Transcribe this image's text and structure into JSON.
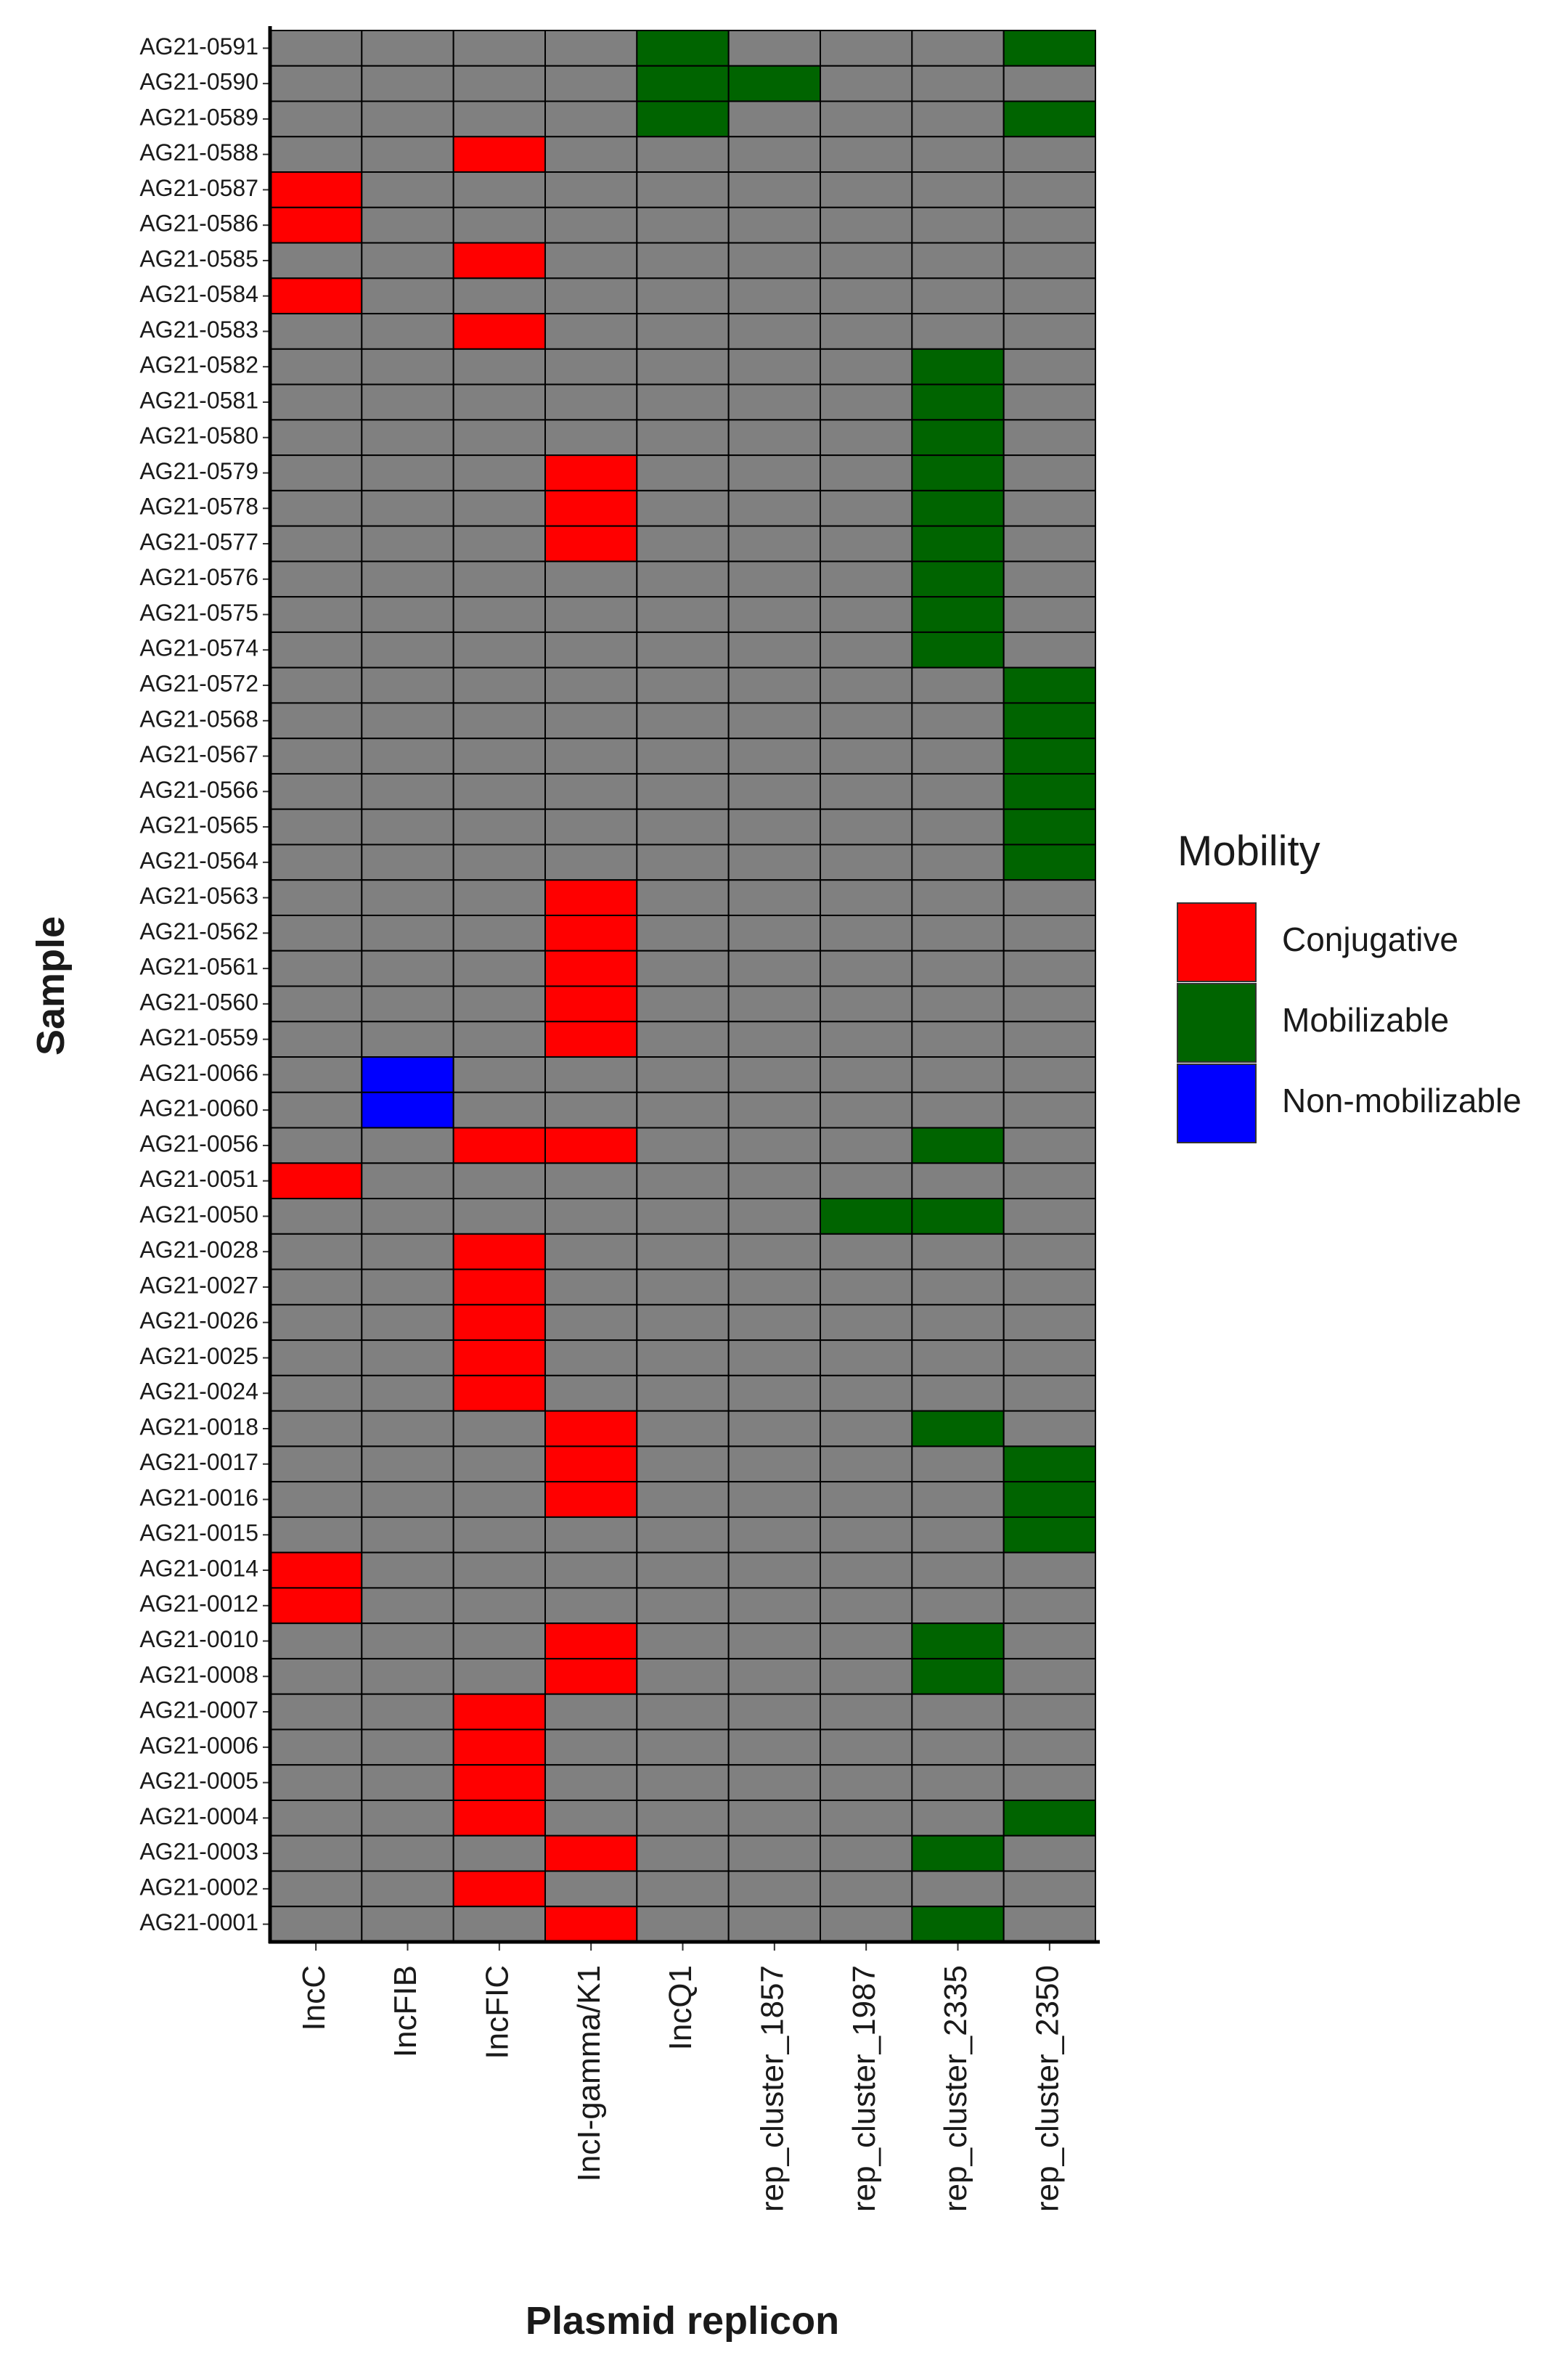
{
  "chart_data": {
    "type": "heatmap",
    "x_label": "Plasmid replicon",
    "y_label": "Sample",
    "legend_title": "Mobility",
    "legend_position": "right",
    "empty_color": "#808080",
    "legend": [
      {
        "name": "Conjugative",
        "color": "#ff0000"
      },
      {
        "name": "Mobilizable",
        "color": "#006400"
      },
      {
        "name": "Non-mobilizable",
        "color": "#0000ff"
      }
    ],
    "x": [
      "IncC",
      "IncFIB",
      "IncFIC",
      "IncI-gamma/K1",
      "IncQ1",
      "rep_cluster_1857",
      "rep_cluster_1987",
      "rep_cluster_2335",
      "rep_cluster_2350"
    ],
    "y": [
      "AG21-0591",
      "AG21-0590",
      "AG21-0589",
      "AG21-0588",
      "AG21-0587",
      "AG21-0586",
      "AG21-0585",
      "AG21-0584",
      "AG21-0583",
      "AG21-0582",
      "AG21-0581",
      "AG21-0580",
      "AG21-0579",
      "AG21-0578",
      "AG21-0577",
      "AG21-0576",
      "AG21-0575",
      "AG21-0574",
      "AG21-0572",
      "AG21-0568",
      "AG21-0567",
      "AG21-0566",
      "AG21-0565",
      "AG21-0564",
      "AG21-0563",
      "AG21-0562",
      "AG21-0561",
      "AG21-0560",
      "AG21-0559",
      "AG21-0066",
      "AG21-0060",
      "AG21-0056",
      "AG21-0051",
      "AG21-0050",
      "AG21-0028",
      "AG21-0027",
      "AG21-0026",
      "AG21-0025",
      "AG21-0024",
      "AG21-0018",
      "AG21-0017",
      "AG21-0016",
      "AG21-0015",
      "AG21-0014",
      "AG21-0012",
      "AG21-0010",
      "AG21-0008",
      "AG21-0007",
      "AG21-0006",
      "AG21-0005",
      "AG21-0004",
      "AG21-0003",
      "AG21-0002",
      "AG21-0001"
    ],
    "values": [
      [
        null,
        null,
        null,
        null,
        "Mobilizable",
        null,
        null,
        null,
        "Mobilizable"
      ],
      [
        null,
        null,
        null,
        null,
        "Mobilizable",
        "Mobilizable",
        null,
        null,
        null
      ],
      [
        null,
        null,
        null,
        null,
        "Mobilizable",
        null,
        null,
        null,
        "Mobilizable"
      ],
      [
        null,
        null,
        "Conjugative",
        null,
        null,
        null,
        null,
        null,
        null
      ],
      [
        "Conjugative",
        null,
        null,
        null,
        null,
        null,
        null,
        null,
        null
      ],
      [
        "Conjugative",
        null,
        null,
        null,
        null,
        null,
        null,
        null,
        null
      ],
      [
        null,
        null,
        "Conjugative",
        null,
        null,
        null,
        null,
        null,
        null
      ],
      [
        "Conjugative",
        null,
        null,
        null,
        null,
        null,
        null,
        null,
        null
      ],
      [
        null,
        null,
        "Conjugative",
        null,
        null,
        null,
        null,
        null,
        null
      ],
      [
        null,
        null,
        null,
        null,
        null,
        null,
        null,
        "Mobilizable",
        null
      ],
      [
        null,
        null,
        null,
        null,
        null,
        null,
        null,
        "Mobilizable",
        null
      ],
      [
        null,
        null,
        null,
        null,
        null,
        null,
        null,
        "Mobilizable",
        null
      ],
      [
        null,
        null,
        null,
        "Conjugative",
        null,
        null,
        null,
        "Mobilizable",
        null
      ],
      [
        null,
        null,
        null,
        "Conjugative",
        null,
        null,
        null,
        "Mobilizable",
        null
      ],
      [
        null,
        null,
        null,
        "Conjugative",
        null,
        null,
        null,
        "Mobilizable",
        null
      ],
      [
        null,
        null,
        null,
        null,
        null,
        null,
        null,
        "Mobilizable",
        null
      ],
      [
        null,
        null,
        null,
        null,
        null,
        null,
        null,
        "Mobilizable",
        null
      ],
      [
        null,
        null,
        null,
        null,
        null,
        null,
        null,
        "Mobilizable",
        null
      ],
      [
        null,
        null,
        null,
        null,
        null,
        null,
        null,
        null,
        "Mobilizable"
      ],
      [
        null,
        null,
        null,
        null,
        null,
        null,
        null,
        null,
        "Mobilizable"
      ],
      [
        null,
        null,
        null,
        null,
        null,
        null,
        null,
        null,
        "Mobilizable"
      ],
      [
        null,
        null,
        null,
        null,
        null,
        null,
        null,
        null,
        "Mobilizable"
      ],
      [
        null,
        null,
        null,
        null,
        null,
        null,
        null,
        null,
        "Mobilizable"
      ],
      [
        null,
        null,
        null,
        null,
        null,
        null,
        null,
        null,
        "Mobilizable"
      ],
      [
        null,
        null,
        null,
        "Conjugative",
        null,
        null,
        null,
        null,
        null
      ],
      [
        null,
        null,
        null,
        "Conjugative",
        null,
        null,
        null,
        null,
        null
      ],
      [
        null,
        null,
        null,
        "Conjugative",
        null,
        null,
        null,
        null,
        null
      ],
      [
        null,
        null,
        null,
        "Conjugative",
        null,
        null,
        null,
        null,
        null
      ],
      [
        null,
        null,
        null,
        "Conjugative",
        null,
        null,
        null,
        null,
        null
      ],
      [
        null,
        "Non-mobilizable",
        null,
        null,
        null,
        null,
        null,
        null,
        null
      ],
      [
        null,
        "Non-mobilizable",
        null,
        null,
        null,
        null,
        null,
        null,
        null
      ],
      [
        null,
        null,
        "Conjugative",
        "Conjugative",
        null,
        null,
        null,
        "Mobilizable",
        null
      ],
      [
        "Conjugative",
        null,
        null,
        null,
        null,
        null,
        null,
        null,
        null
      ],
      [
        null,
        null,
        null,
        null,
        null,
        null,
        "Mobilizable",
        "Mobilizable",
        null
      ],
      [
        null,
        null,
        "Conjugative",
        null,
        null,
        null,
        null,
        null,
        null
      ],
      [
        null,
        null,
        "Conjugative",
        null,
        null,
        null,
        null,
        null,
        null
      ],
      [
        null,
        null,
        "Conjugative",
        null,
        null,
        null,
        null,
        null,
        null
      ],
      [
        null,
        null,
        "Conjugative",
        null,
        null,
        null,
        null,
        null,
        null
      ],
      [
        null,
        null,
        "Conjugative",
        null,
        null,
        null,
        null,
        null,
        null
      ],
      [
        null,
        null,
        null,
        "Conjugative",
        null,
        null,
        null,
        "Mobilizable",
        null
      ],
      [
        null,
        null,
        null,
        "Conjugative",
        null,
        null,
        null,
        null,
        "Mobilizable"
      ],
      [
        null,
        null,
        null,
        "Conjugative",
        null,
        null,
        null,
        null,
        "Mobilizable"
      ],
      [
        null,
        null,
        null,
        null,
        null,
        null,
        null,
        null,
        "Mobilizable"
      ],
      [
        "Conjugative",
        null,
        null,
        null,
        null,
        null,
        null,
        null,
        null
      ],
      [
        "Conjugative",
        null,
        null,
        null,
        null,
        null,
        null,
        null,
        null
      ],
      [
        null,
        null,
        null,
        "Conjugative",
        null,
        null,
        null,
        "Mobilizable",
        null
      ],
      [
        null,
        null,
        null,
        "Conjugative",
        null,
        null,
        null,
        "Mobilizable",
        null
      ],
      [
        null,
        null,
        "Conjugative",
        null,
        null,
        null,
        null,
        null,
        null
      ],
      [
        null,
        null,
        "Conjugative",
        null,
        null,
        null,
        null,
        null,
        null
      ],
      [
        null,
        null,
        "Conjugative",
        null,
        null,
        null,
        null,
        null,
        null
      ],
      [
        null,
        null,
        "Conjugative",
        null,
        null,
        null,
        null,
        null,
        "Mobilizable"
      ],
      [
        null,
        null,
        null,
        "Conjugative",
        null,
        null,
        null,
        "Mobilizable",
        null
      ],
      [
        null,
        null,
        "Conjugative",
        null,
        null,
        null,
        null,
        null,
        null
      ],
      [
        null,
        null,
        null,
        "Conjugative",
        null,
        null,
        null,
        "Mobilizable",
        null
      ]
    ]
  }
}
